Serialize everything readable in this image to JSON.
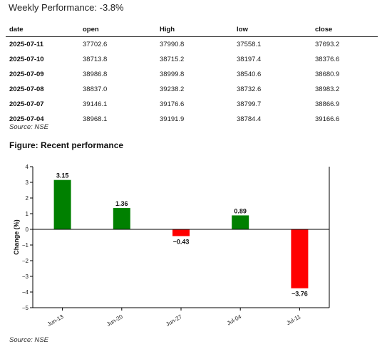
{
  "header": {
    "title": "Weekly Performance: -3.8%"
  },
  "table": {
    "columns": [
      "date",
      "open",
      "High",
      "low",
      "close"
    ],
    "rows": [
      [
        "2025-07-11",
        "37702.6",
        "37990.8",
        "37558.1",
        "37693.2"
      ],
      [
        "2025-07-10",
        "38713.8",
        "38715.2",
        "38197.4",
        "38376.6"
      ],
      [
        "2025-07-09",
        "38986.8",
        "38999.8",
        "38540.6",
        "38680.9"
      ],
      [
        "2025-07-08",
        "38837.0",
        "39238.2",
        "38732.6",
        "38983.2"
      ],
      [
        "2025-07-07",
        "39146.1",
        "39176.6",
        "38799.7",
        "38866.9"
      ],
      [
        "2025-07-04",
        "38968.1",
        "39191.9",
        "38784.4",
        "39166.6"
      ]
    ],
    "source": "Source: NSE"
  },
  "figure": {
    "heading": "Figure: Recent performance",
    "source": "Source: NSE"
  },
  "chart_data": {
    "type": "bar",
    "categories": [
      "Jun-13",
      "Jun-20",
      "Jun-27",
      "Jul-04",
      "Jul-11"
    ],
    "values": [
      3.15,
      1.36,
      -0.43,
      0.89,
      -3.76
    ],
    "data_labels": [
      "3.15",
      "1.36",
      "−0.43",
      "0.89",
      "−3.76"
    ],
    "title": "",
    "xlabel": "",
    "ylabel": "Change (%)",
    "ylim": [
      -5,
      4
    ],
    "yticks": [
      4,
      3,
      2,
      1,
      0,
      -1,
      -2,
      -3,
      -4,
      -5
    ],
    "ytick_labels": [
      "4",
      "3",
      "2",
      "1",
      "0",
      "−1",
      "−2",
      "−3",
      "−4",
      "−5"
    ],
    "grid": false,
    "colors": {
      "positive": "#008000",
      "negative": "#ff0000"
    }
  }
}
